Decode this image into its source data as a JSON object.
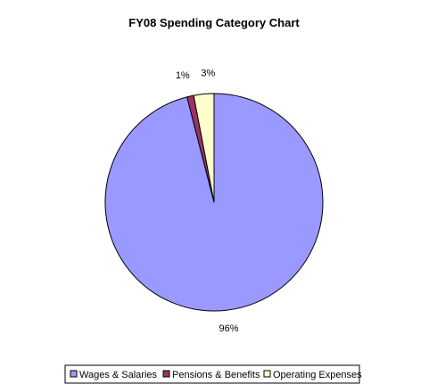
{
  "chart_data": {
    "type": "pie",
    "title": "FY08 Spending Category Chart",
    "categories": [
      "Wages & Salaries",
      "Pensions & Benefits",
      "Operating Expenses"
    ],
    "values": [
      96,
      1,
      3
    ],
    "labels": [
      "96%",
      "1%",
      "3%"
    ],
    "colors": [
      "#9999ff",
      "#993366",
      "#ffffcc"
    ],
    "start_angle_deg": 0,
    "direction": "clockwise",
    "legend": "bottom"
  }
}
